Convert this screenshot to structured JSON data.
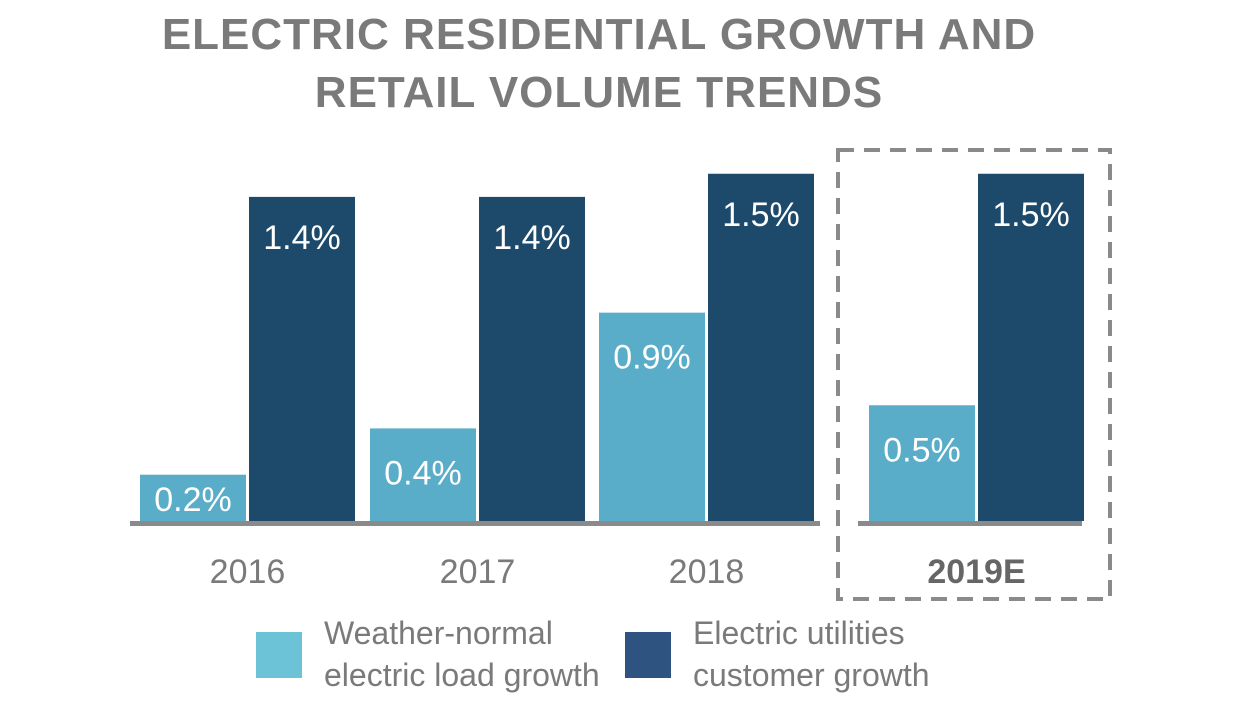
{
  "title": {
    "line1": "ELECTRIC RESIDENTIAL GROWTH AND",
    "line2": "RETAIL VOLUME TRENDS"
  },
  "colors": {
    "light_series": "#5aadc8",
    "dark_series": "#1d4a6b",
    "legend_light": "#6cc2d6",
    "legend_dark": "#2f5380",
    "axis": "#8a8a8a",
    "text": "#7a7a7a",
    "highlight_border": "#8a8a8a"
  },
  "legend": {
    "items": [
      {
        "line1": "Weather-normal",
        "line2": "electric load growth",
        "color_key": "legend_light"
      },
      {
        "line1": "Electric utilities",
        "line2": "customer growth",
        "color_key": "legend_dark"
      }
    ]
  },
  "chart_data": {
    "type": "bar",
    "categories": [
      "2016",
      "2017",
      "2018",
      "2019E"
    ],
    "highlighted_category": "2019E",
    "series": [
      {
        "name": "Weather-normal electric load growth",
        "values": [
          0.2,
          0.4,
          0.9,
          0.5
        ],
        "labels": [
          "0.2%",
          "0.4%",
          "0.9%",
          "0.5%"
        ]
      },
      {
        "name": "Electric utilities customer growth",
        "values": [
          1.4,
          1.4,
          1.5,
          1.5
        ],
        "labels": [
          "1.4%",
          "1.4%",
          "1.5%",
          "1.5%"
        ]
      }
    ],
    "title": "ELECTRIC RESIDENTIAL GROWTH AND RETAIL VOLUME TRENDS",
    "xlabel": "",
    "ylabel": "",
    "ylim": [
      0,
      1.5
    ],
    "grid": false,
    "legend_position": "bottom"
  }
}
